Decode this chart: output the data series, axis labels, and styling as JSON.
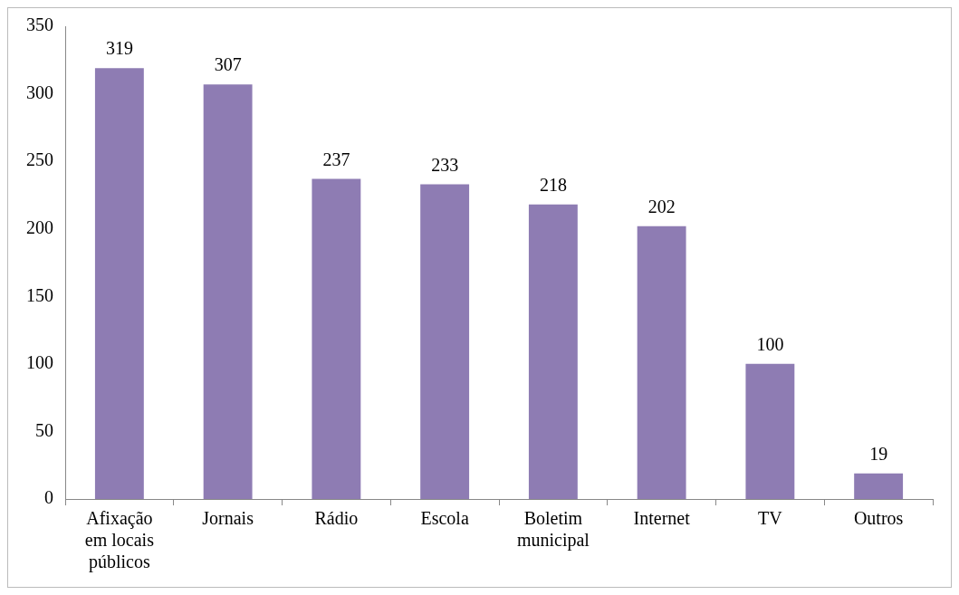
{
  "chart_data": {
    "type": "bar",
    "categories": [
      "Afixação em locais públicos",
      "Jornais",
      "Rádio",
      "Escola",
      "Boletim municipal",
      "Internet",
      "TV",
      "Outros"
    ],
    "values": [
      319,
      307,
      237,
      233,
      218,
      202,
      100,
      19
    ],
    "color": "#8e7cb3",
    "ylim": [
      0,
      350
    ],
    "yticks": [
      0,
      50,
      100,
      150,
      200,
      250,
      300,
      350
    ],
    "grid": false,
    "legend": false,
    "data_labels": true
  }
}
